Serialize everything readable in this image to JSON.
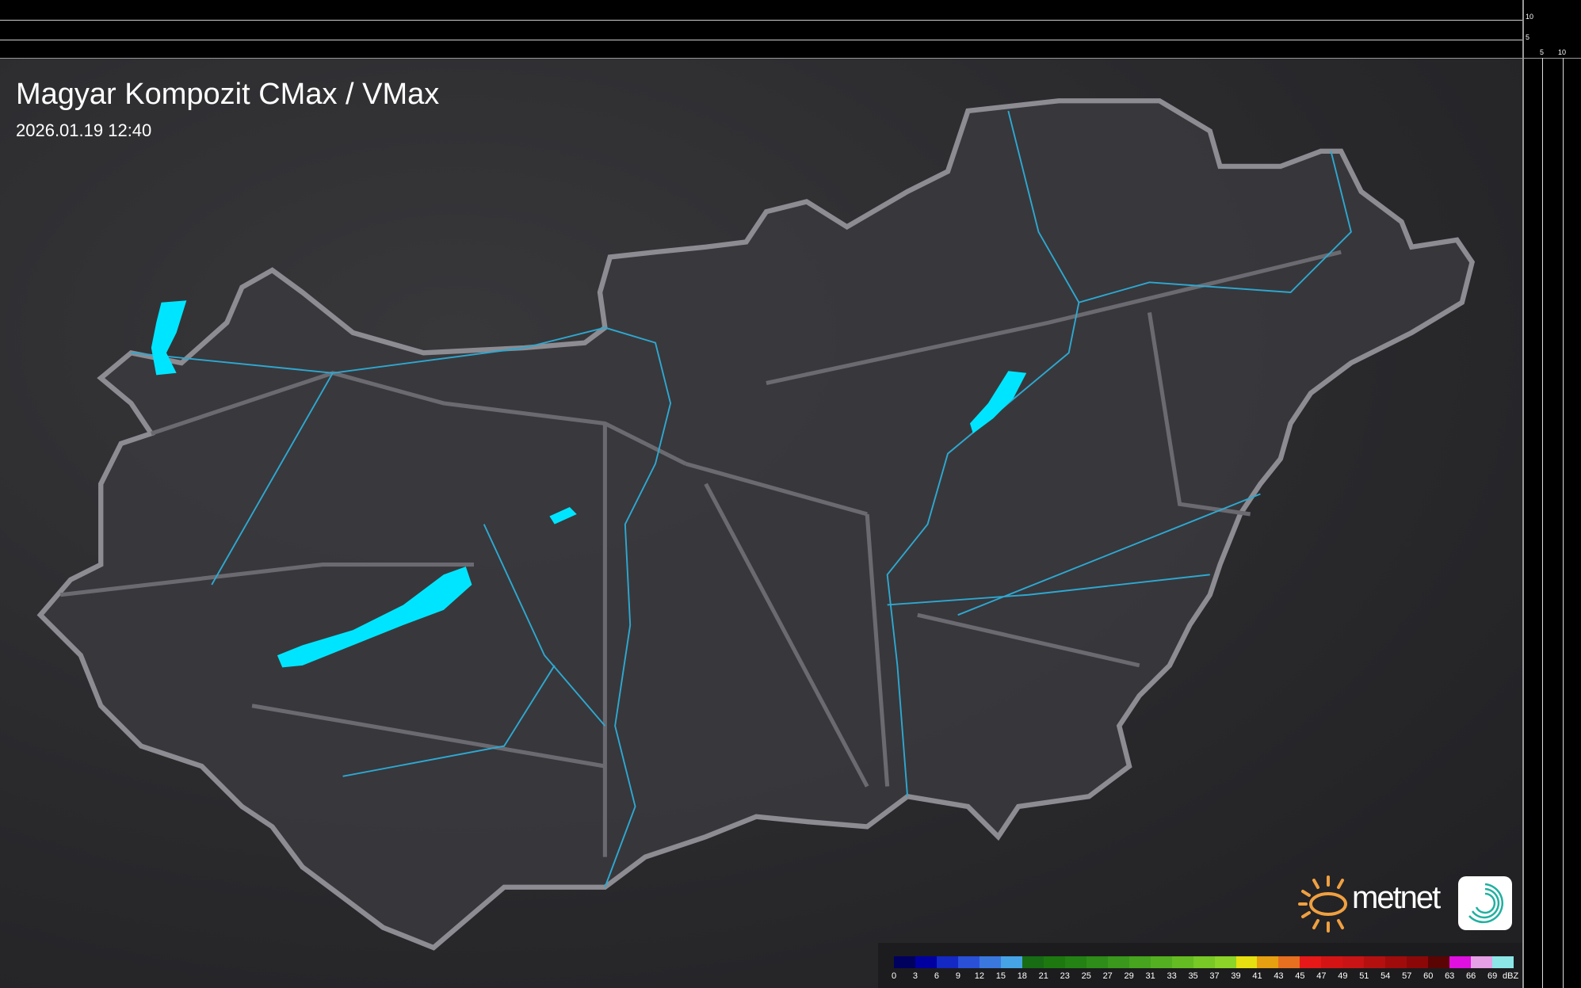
{
  "header": {
    "title": "Magyar Kompozit CMax / VMax",
    "timestamp": "2026.01.19 12:40"
  },
  "profile_axes": {
    "top_ticks": [
      "10",
      "5"
    ],
    "side_ticks": [
      "5",
      "10"
    ]
  },
  "legend": {
    "unit": "dBZ",
    "labels": [
      "0",
      "3",
      "6",
      "9",
      "12",
      "15",
      "18",
      "21",
      "23",
      "25",
      "27",
      "29",
      "31",
      "33",
      "35",
      "37",
      "39",
      "41",
      "43",
      "45",
      "47",
      "49",
      "51",
      "54",
      "57",
      "60",
      "63",
      "66",
      "69"
    ],
    "colors": [
      "#00005e",
      "#0000a0",
      "#1428c4",
      "#2a50d8",
      "#3a78de",
      "#46a4e6",
      "#176c14",
      "#1d7810",
      "#248214",
      "#2e8c18",
      "#3a981c",
      "#46a41e",
      "#54b020",
      "#64bc22",
      "#78c826",
      "#8cd428",
      "#e6e010",
      "#e6a010",
      "#e67020",
      "#e61818",
      "#d41414",
      "#c81414",
      "#b41010",
      "#a00c0c",
      "#8c0808",
      "#5a0404",
      "#e010e0",
      "#e6a0e6",
      "#8ce6e6"
    ]
  },
  "brand": {
    "logo_text": "metnet",
    "sun_color": "#f0a040",
    "accent": "#20b0a0"
  },
  "map": {
    "water_color": "#00e5ff",
    "border_color": "#8c8c92",
    "river_color": "#2ea8d0"
  }
}
